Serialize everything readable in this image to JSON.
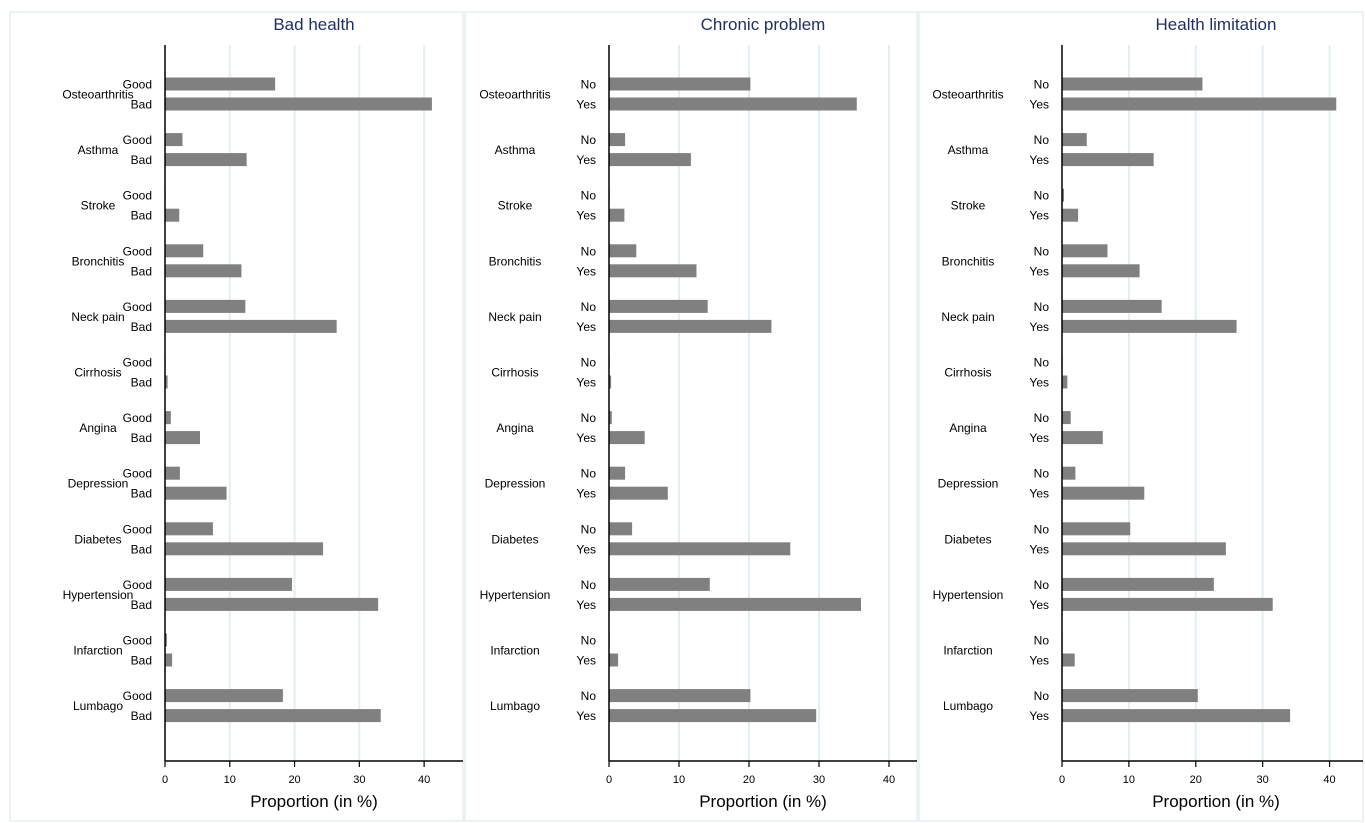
{
  "chart_data": [
    {
      "type": "bar",
      "orientation": "horizontal",
      "title": "Bad health",
      "xlabel": "Proportion (in %)",
      "xlim": [
        0,
        46
      ],
      "xticks": [
        0,
        10,
        20,
        30,
        40
      ],
      "grid": true,
      "categories": [
        "Osteoarthritis",
        "Asthma",
        "Stroke",
        "Bronchitis",
        "Neck pain",
        "Cirrhosis",
        "Angina",
        "Depression",
        "Diabetes",
        "Hypertension",
        "Infarction",
        "Lumbago"
      ],
      "groups": [
        "Good",
        "Bad"
      ],
      "series": [
        {
          "name": "Good",
          "values": [
            17.0,
            2.7,
            0.1,
            5.9,
            12.4,
            0.1,
            0.9,
            2.3,
            7.4,
            19.6,
            0.3,
            18.2
          ]
        },
        {
          "name": "Bad",
          "values": [
            41.2,
            12.6,
            2.2,
            11.8,
            26.5,
            0.4,
            5.4,
            9.5,
            24.4,
            32.9,
            1.1,
            33.3
          ]
        }
      ]
    },
    {
      "type": "bar",
      "orientation": "horizontal",
      "title": "Chronic problem",
      "xlabel": "Proportion (in %)",
      "xlim": [
        0,
        44
      ],
      "xticks": [
        0,
        10,
        20,
        30,
        40
      ],
      "grid": true,
      "categories": [
        "Osteoarthritis",
        "Asthma",
        "Stroke",
        "Bronchitis",
        "Neck pain",
        "Cirrhosis",
        "Angina",
        "Depression",
        "Diabetes",
        "Hypertension",
        "Infarction",
        "Lumbago"
      ],
      "groups": [
        "No",
        "Yes"
      ],
      "series": [
        {
          "name": "No",
          "values": [
            20.2,
            2.3,
            0.1,
            3.9,
            14.1,
            0.1,
            0.4,
            2.3,
            3.3,
            14.4,
            0.1,
            20.2
          ]
        },
        {
          "name": "Yes",
          "values": [
            35.4,
            11.7,
            2.2,
            12.5,
            23.2,
            0.3,
            5.1,
            8.4,
            25.9,
            36.0,
            1.3,
            29.6
          ]
        }
      ]
    },
    {
      "type": "bar",
      "orientation": "horizontal",
      "title": "Health limitation",
      "xlabel": "Proportion (in %)",
      "xlim": [
        0,
        45
      ],
      "xticks": [
        0,
        10,
        20,
        30,
        40
      ],
      "grid": true,
      "categories": [
        "Osteoarthritis",
        "Asthma",
        "Stroke",
        "Bronchitis",
        "Neck pain",
        "Cirrhosis",
        "Angina",
        "Depression",
        "Diabetes",
        "Hypertension",
        "Infarction",
        "Lumbago"
      ],
      "groups": [
        "No",
        "Yes"
      ],
      "series": [
        {
          "name": "No",
          "values": [
            21.0,
            3.7,
            0.3,
            6.8,
            14.9,
            0.1,
            1.3,
            2.0,
            10.2,
            22.7,
            0.1,
            20.3
          ]
        },
        {
          "name": "Yes",
          "values": [
            41.0,
            13.7,
            2.4,
            11.6,
            26.1,
            0.8,
            6.1,
            12.3,
            24.5,
            31.5,
            1.9,
            34.1
          ]
        }
      ]
    }
  ],
  "colors": {
    "bar": "#808080",
    "title": "#1f2f5f",
    "grid": "#e2eef0",
    "panel_border": "#e4eff1",
    "axis": "#000000",
    "text": "#000000"
  }
}
